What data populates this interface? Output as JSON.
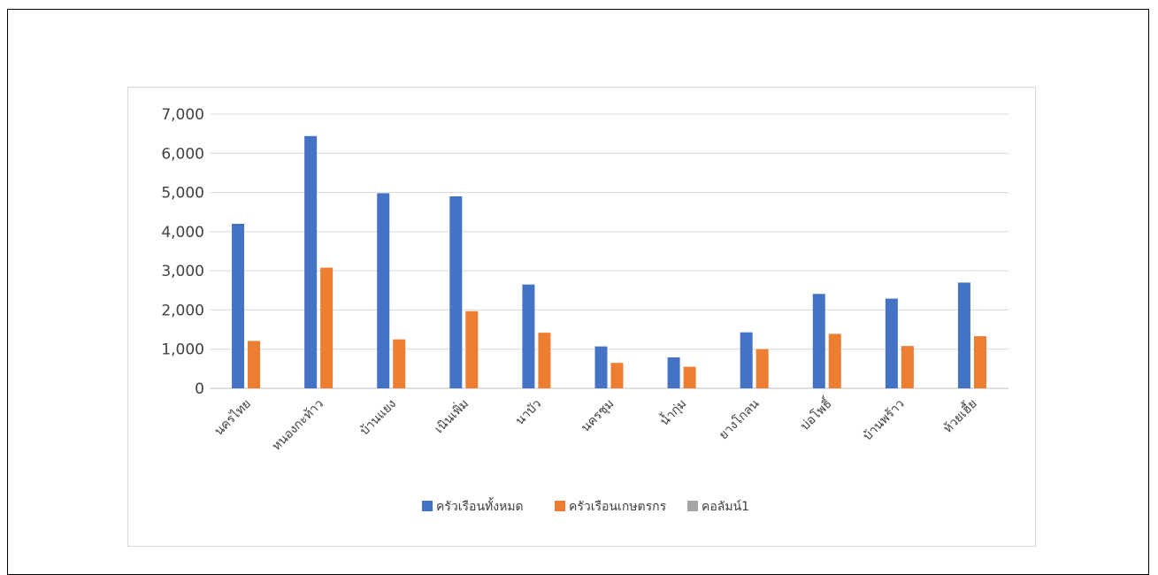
{
  "chart_data": {
    "type": "bar",
    "title": "",
    "xlabel": "",
    "ylabel": "",
    "ylim": [
      0,
      7000
    ],
    "yticks": [
      0,
      1000,
      2000,
      3000,
      4000,
      5000,
      6000,
      7000
    ],
    "ytick_labels": [
      "0",
      "1,000",
      "2,000",
      "3,000",
      "4,000",
      "5,000",
      "6,000",
      "7,000"
    ],
    "grid": true,
    "legend_position": "bottom",
    "categories": [
      "นครไทย",
      "หนองกะท้าว",
      "บ้านแยง",
      "เนินเพิ่ม",
      "นาบัว",
      "นครชุม",
      "น้ำกุ่ม",
      "ยางโกลน",
      "บ่อโพธิ์",
      "บ้านพร้าว",
      "ห้วยเฮี้ย"
    ],
    "series": [
      {
        "name": "ครัวเรือนทั้งหมด",
        "color": "#4472c4",
        "values": [
          4200,
          6440,
          4980,
          4900,
          2650,
          1070,
          790,
          1430,
          2410,
          2290,
          2700
        ]
      },
      {
        "name": "ครัวเรือนเกษตรกร",
        "color": "#ed7d31",
        "values": [
          1210,
          3080,
          1250,
          1970,
          1420,
          650,
          550,
          1000,
          1390,
          1080,
          1330
        ]
      },
      {
        "name": "คอลัมน์1",
        "color": "#a5a5a5",
        "values": [
          0,
          0,
          0,
          0,
          0,
          0,
          0,
          0,
          0,
          0,
          0
        ]
      }
    ]
  }
}
